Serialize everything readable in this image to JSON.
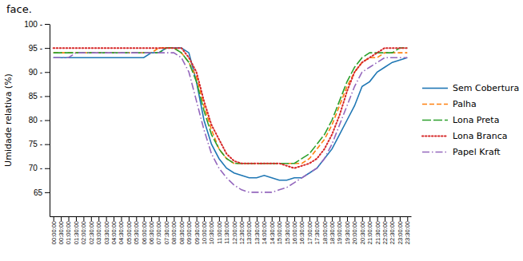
{
  "chart_data": {
    "type": "line",
    "title": "face.",
    "ylabel": "Umidade relativa (%)",
    "categories": [
      "00:00:00",
      "00:30:00",
      "01:00:00",
      "01:30:00",
      "02:00:00",
      "02:30:00",
      "03:00:00",
      "03:30:00",
      "04:00:00",
      "04:30:00",
      "05:00:00",
      "05:30:00",
      "06:00:00",
      "06:30:00",
      "07:00:00",
      "07:30:00",
      "08:00:00",
      "08:30:00",
      "09:00:00",
      "09:30:00",
      "10:00:00",
      "10:30:00",
      "11:00:00",
      "11:30:00",
      "12:00:00",
      "12:30:00",
      "13:00:00",
      "13:30:00",
      "14:00:00",
      "14:30:00",
      "15:00:00",
      "15:30:00",
      "16:00:00",
      "16:30:00",
      "17:00:00",
      "17:30:00",
      "18:00:00",
      "18:30:00",
      "19:00:00",
      "19:30:00",
      "20:00:00",
      "20:30:00",
      "21:00:00",
      "21:30:00",
      "22:00:00",
      "22:30:00",
      "23:00:00",
      "23:30:00"
    ],
    "series": [
      {
        "name": "Sem Cobertura",
        "line_style": "solid",
        "values": [
          93,
          93,
          93,
          93,
          93,
          93,
          93,
          93,
          93,
          93,
          93,
          93,
          93,
          94,
          94,
          95,
          95,
          95,
          94,
          88,
          80,
          75,
          72,
          70,
          69,
          68.5,
          68,
          68,
          68.5,
          68,
          67.5,
          67.5,
          68,
          68,
          69,
          70,
          72,
          74,
          77,
          80,
          83,
          87,
          88,
          90,
          91,
          92,
          92.5,
          93
        ]
      },
      {
        "name": "Palha",
        "line_style": "dashed",
        "values": [
          94,
          94,
          94,
          94,
          94,
          94,
          94,
          94,
          94,
          94,
          94,
          94,
          94,
          94,
          95,
          95,
          95,
          94,
          92,
          89,
          83,
          78,
          74,
          72,
          71,
          71,
          71,
          71,
          71,
          71,
          71,
          71,
          71,
          71,
          72,
          74,
          76,
          79,
          83,
          87,
          90,
          92,
          93,
          93,
          94,
          94,
          94,
          94
        ]
      },
      {
        "name": "Lona Preta",
        "line_style": "longdash",
        "values": [
          94,
          94,
          94,
          94,
          94,
          94,
          94,
          94,
          94,
          94,
          94,
          94,
          94,
          94,
          94,
          95,
          95,
          94,
          92,
          88,
          82,
          77,
          74,
          72,
          71,
          71,
          71,
          71,
          71,
          71,
          71,
          71,
          71,
          72,
          73,
          75,
          77,
          80,
          84,
          88,
          91,
          93,
          94,
          94,
          94,
          94,
          95,
          95
        ]
      },
      {
        "name": "Lona Branca",
        "line_style": "dotted",
        "values": [
          95,
          95,
          95,
          95,
          95,
          95,
          95,
          95,
          95,
          95,
          95,
          95,
          95,
          95,
          95,
          95,
          95,
          95,
          93,
          90,
          84,
          79,
          76,
          73,
          71.5,
          71,
          71,
          71,
          71,
          71,
          71,
          70.5,
          70,
          70.5,
          71,
          72,
          74,
          77,
          81,
          86,
          90,
          92,
          93,
          94,
          95,
          95,
          95,
          95
        ]
      },
      {
        "name": "Papel Kraft",
        "line_style": "dashdot",
        "values": [
          93,
          93,
          93,
          94,
          94,
          94,
          94,
          94,
          94,
          94,
          94,
          94,
          94,
          94,
          94,
          94,
          94,
          93,
          90,
          84,
          78,
          73,
          70,
          68,
          66.5,
          65.5,
          65,
          65,
          65,
          65,
          65.5,
          66,
          67,
          68,
          69,
          70,
          72,
          75,
          79,
          83,
          87,
          90,
          91,
          92,
          93,
          93,
          93,
          93
        ]
      }
    ],
    "ylim": [
      60,
      100
    ],
    "yticks": [
      65,
      {
        "value": 70,
        "label": "70 -"
      },
      {
        "value": 75,
        "label": "75 -"
      },
      {
        "value": 80,
        "label": "80 -"
      },
      {
        "value": 85,
        "label": "85 -"
      },
      {
        "value": 90,
        "label": "90 -"
      },
      {
        "value": 95,
        "label": "95 -"
      },
      {
        "value": 100,
        "label": "100 -"
      }
    ],
    "grid": false,
    "legend": "right"
  }
}
